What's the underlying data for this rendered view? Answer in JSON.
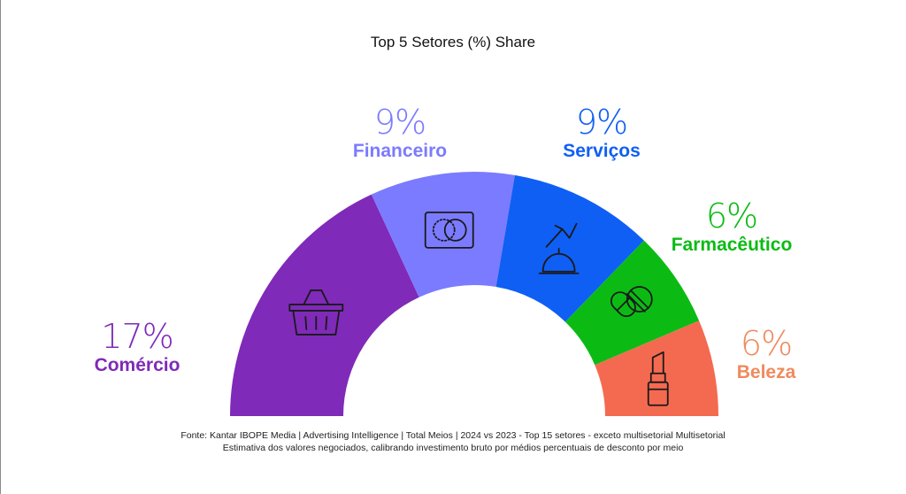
{
  "chart_data": {
    "type": "pie",
    "subtype": "semicircle-donut",
    "title": "Top 5 Setores (%) Share",
    "categories": [
      "Comércio",
      "Financeiro",
      "Serviços",
      "Farmacêutico",
      "Beleza"
    ],
    "values": [
      17,
      9,
      9,
      6,
      6
    ],
    "value_labels": [
      "17%",
      "9%",
      "9%",
      "6%",
      "6%"
    ],
    "colors": [
      "#7f2ab8",
      "#7b7bff",
      "#0f5ff5",
      "#0bbb14",
      "#f46a50"
    ],
    "label_colors": [
      "#7f2ab8",
      "#7b7bff",
      "#0f5ff5",
      "#0bbb14",
      "#f08a5e"
    ],
    "icons": [
      "basket-icon",
      "credit-card-icon",
      "service-bell-icon",
      "pills-icon",
      "lipstick-icon"
    ],
    "legend": "none"
  },
  "source": {
    "line1": "Fonte: Kantar IBOPE Media | Advertising Intelligence | Total Meios | 2024 vs 2023 - Top 15 setores - exceto multisetorial Multisetorial",
    "line2": "Estimativa dos valores negociados, calibrando investimento bruto por médios percentuais de desconto por meio"
  }
}
